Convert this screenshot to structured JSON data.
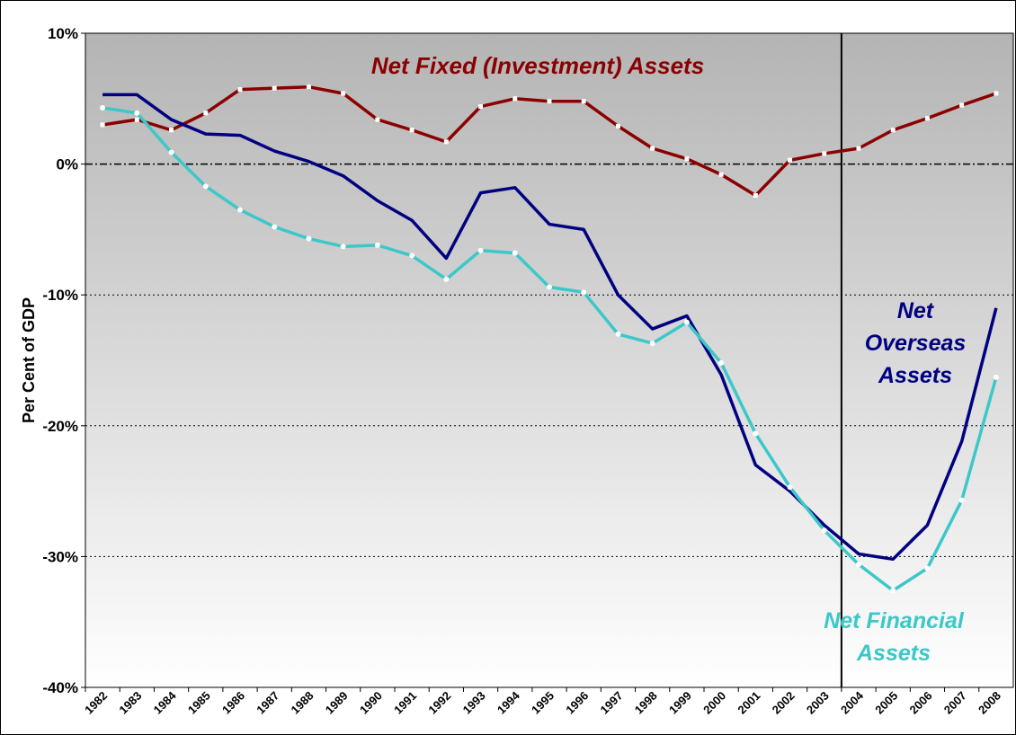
{
  "chart_data": {
    "type": "line",
    "y_label": "Per Cent of GDP",
    "categories": [
      "1982",
      "1983",
      "1984",
      "1985",
      "1986",
      "1987",
      "1988",
      "1989",
      "1990",
      "1991",
      "1992",
      "1993",
      "1994",
      "1995",
      "1996",
      "1997",
      "1998",
      "1999",
      "2000",
      "2001",
      "2002",
      "2003",
      "2004",
      "2005",
      "2006",
      "2007",
      "2008"
    ],
    "series": [
      {
        "name": "Net Fixed (Investment) Assets",
        "color": "#8b0000",
        "marker": "square",
        "values": [
          3.0,
          3.4,
          2.6,
          3.9,
          5.7,
          5.8,
          5.9,
          5.4,
          3.4,
          2.6,
          1.7,
          4.4,
          5.0,
          4.8,
          4.8,
          2.9,
          1.2,
          0.4,
          -0.8,
          -2.4,
          0.3,
          0.8,
          1.2,
          2.6,
          3.5,
          4.5,
          5.4
        ]
      },
      {
        "name": "Net Overseas Assets",
        "label_lines": [
          "Net",
          "Overseas",
          "Assets"
        ],
        "color": "#000080",
        "marker": "none",
        "values": [
          5.3,
          5.3,
          3.4,
          2.3,
          2.2,
          1.0,
          0.2,
          -0.9,
          -2.8,
          -4.3,
          -7.2,
          -2.2,
          -1.8,
          -4.6,
          -5.0,
          -10.0,
          -12.6,
          -11.6,
          -16.1,
          -23.0,
          -25.0,
          -27.6,
          -29.8,
          -30.2,
          -27.6,
          -21.2,
          -11.0
        ]
      },
      {
        "name": "Net Financial Assets",
        "label_lines": [
          "Net Financial",
          "Assets"
        ],
        "color": "#3cc8c8",
        "marker": "circle",
        "values": [
          4.3,
          3.9,
          0.9,
          -1.7,
          -3.5,
          -4.8,
          -5.7,
          -6.3,
          -6.2,
          -7.0,
          -8.8,
          -6.6,
          -6.8,
          -9.4,
          -9.8,
          -13.0,
          -13.7,
          -12.1,
          -15.2,
          -20.6,
          -24.7,
          -28.0,
          -30.6,
          -32.6,
          -30.9,
          -25.7,
          -16.3
        ]
      }
    ],
    "ylim": [
      -40,
      10
    ],
    "yticks": [
      {
        "value": -40,
        "label": "-40%"
      },
      {
        "value": -30,
        "label": "-30%"
      },
      {
        "value": -20,
        "label": "-20%"
      },
      {
        "value": -10,
        "label": "-10%"
      },
      {
        "value": 0,
        "label": "0%"
      },
      {
        "value": 10,
        "label": "10%"
      }
    ],
    "grid": true,
    "vline": "2004"
  }
}
